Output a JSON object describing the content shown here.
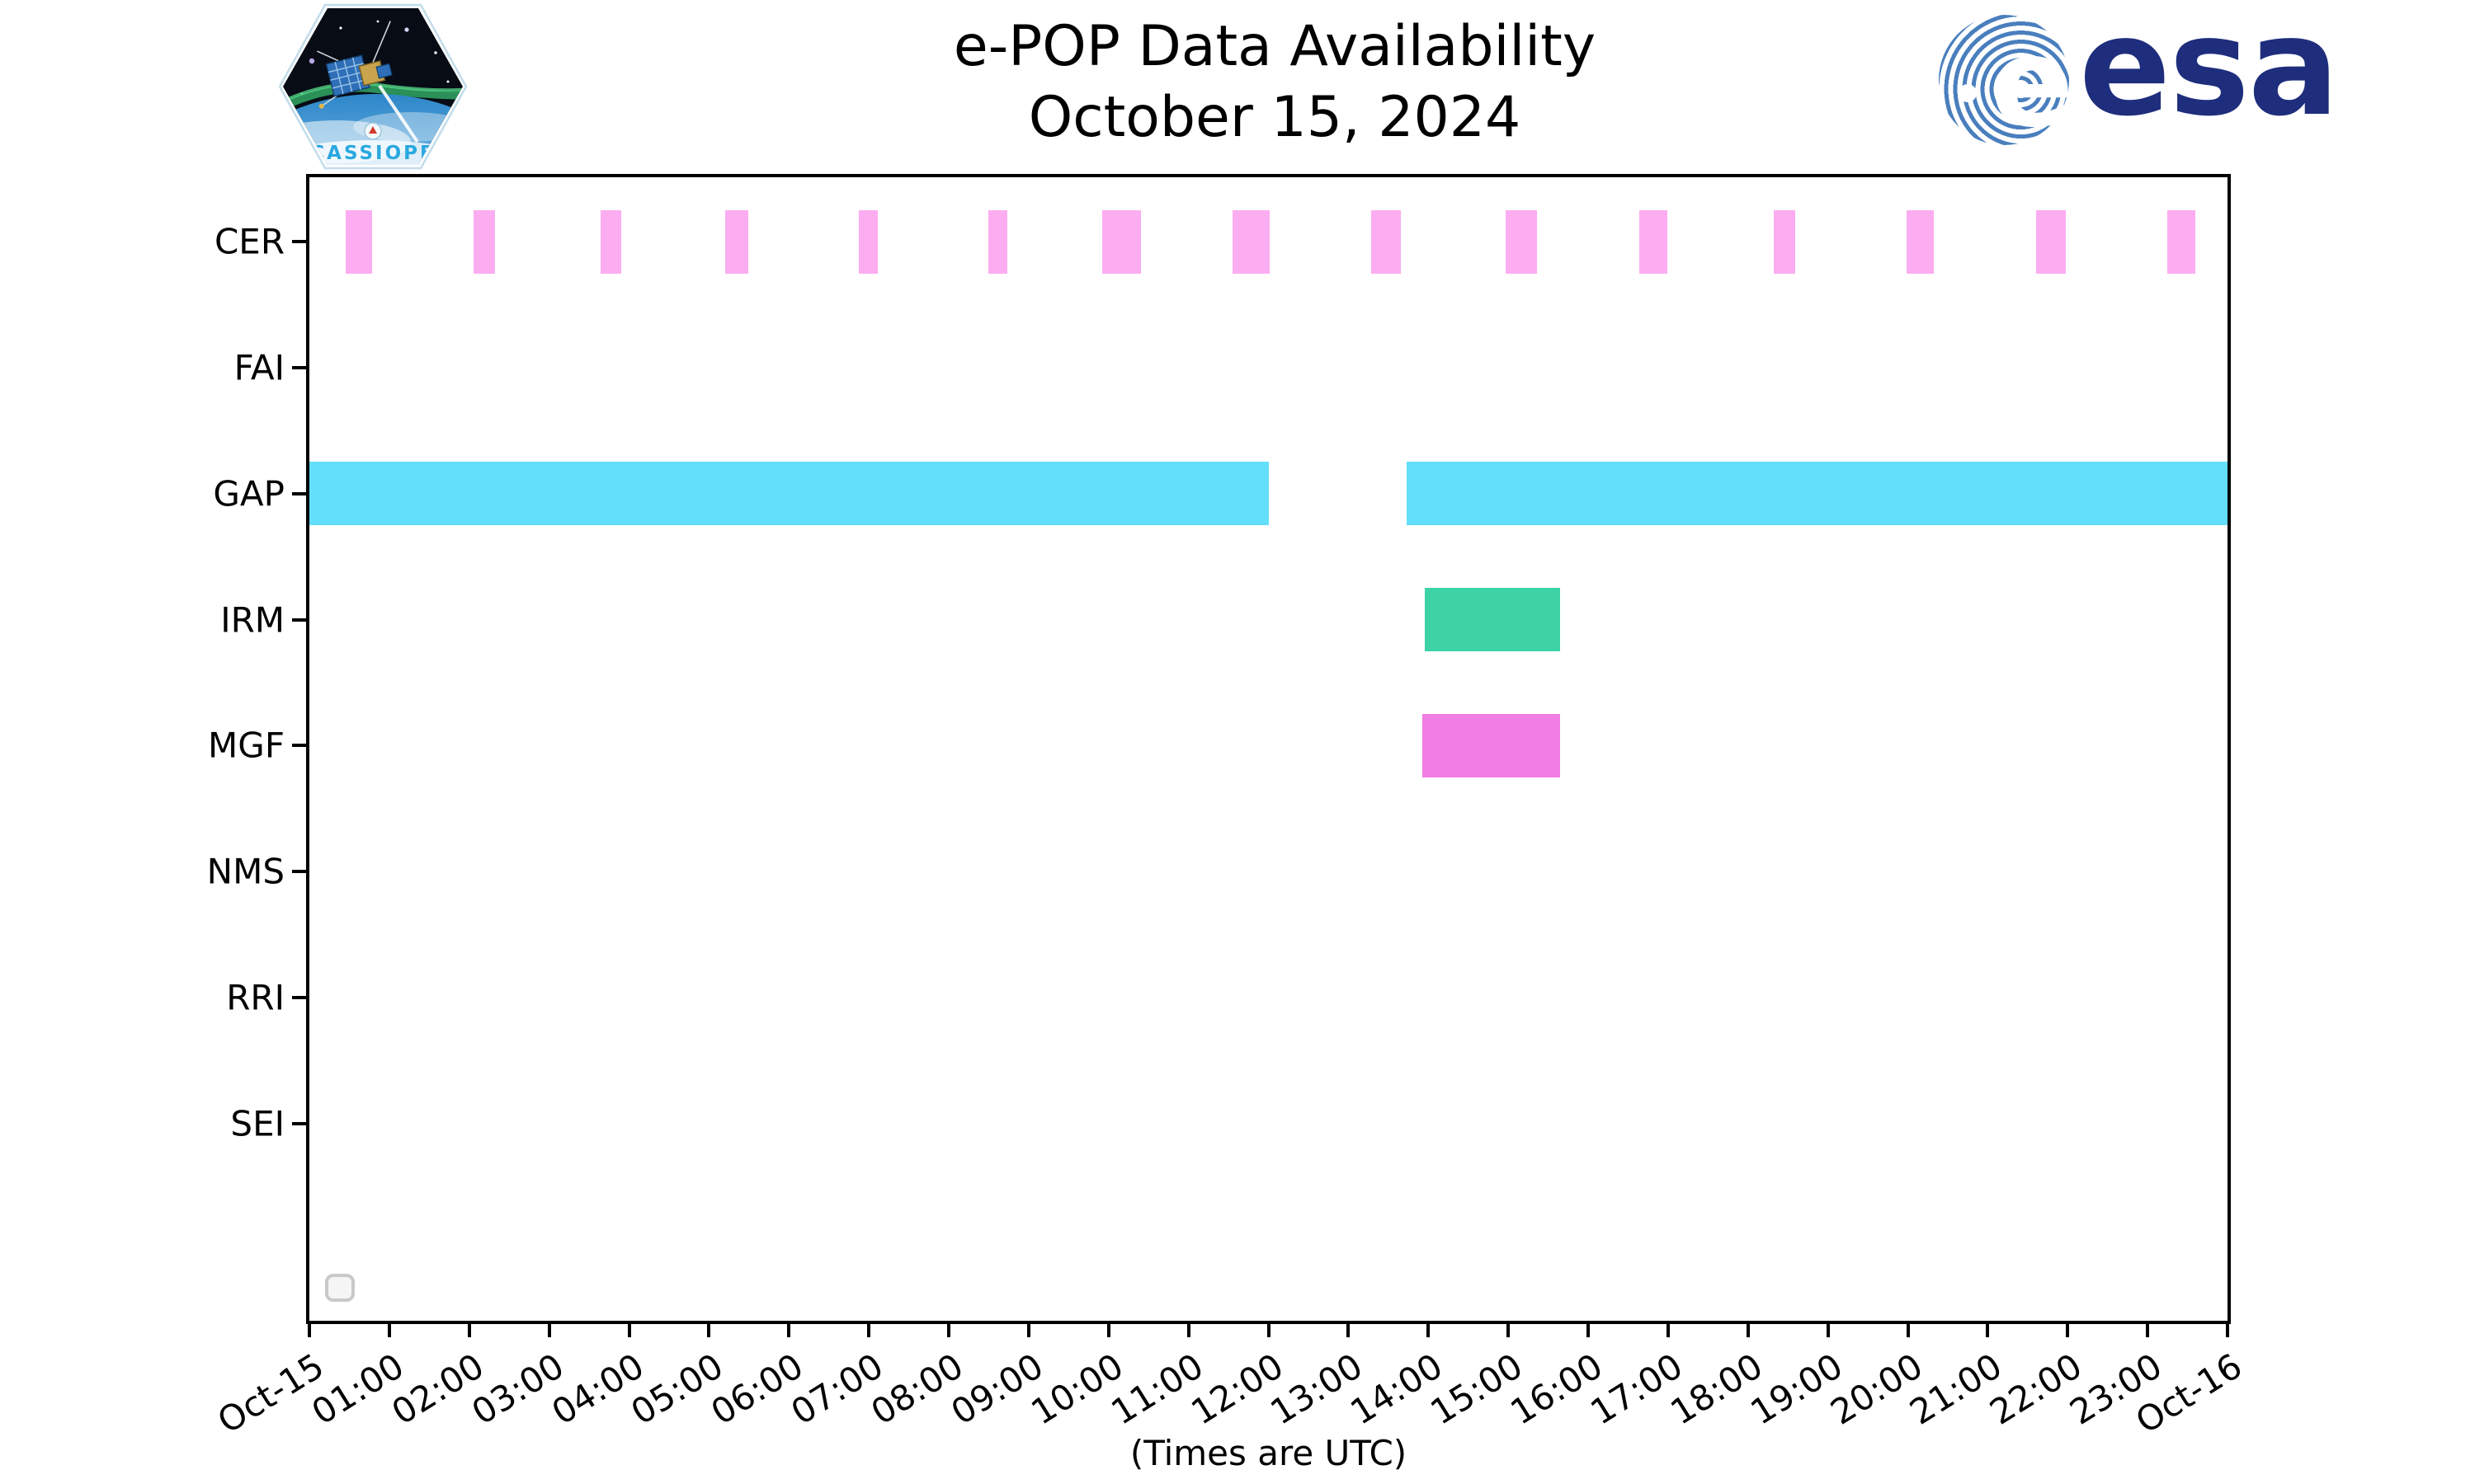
{
  "header": {
    "title_line1": "e-POP Data Availability",
    "title_line2": "October 15, 2024",
    "cassiope_patch_text": "CASSIOPE",
    "esa_logo_text": "esa"
  },
  "axis_note": "(Times are UTC)",
  "colors": {
    "cer_bar": "#fcadf1",
    "gap_bar": "#63defb",
    "irm_bar": "#3dd3a5",
    "mgf_bar": "#f17ee2",
    "axis": "#000000",
    "esa_stripe_blue": "#4a7fbe",
    "esa_text_navy": "#1e2e7d",
    "cassiope_text_blue": "#29a8e0"
  },
  "chart_data": {
    "type": "bar",
    "subtype": "availability-interval-timeline",
    "title": "e-POP Data Availability",
    "subtitle": "October 15, 2024",
    "xlabel": "(Times are UTC)",
    "x_unit": "hours UTC on 2024-10-15",
    "xlim": [
      0,
      24
    ],
    "grid": false,
    "legend_position": "lower-left-empty-box",
    "x_ticks": [
      "Oct-15",
      "01:00",
      "02:00",
      "03:00",
      "04:00",
      "05:00",
      "06:00",
      "07:00",
      "08:00",
      "09:00",
      "10:00",
      "11:00",
      "12:00",
      "13:00",
      "14:00",
      "15:00",
      "16:00",
      "17:00",
      "18:00",
      "19:00",
      "20:00",
      "21:00",
      "22:00",
      "23:00",
      "Oct-16"
    ],
    "y_categories": [
      "CER",
      "FAI",
      "GAP",
      "IRM",
      "MGF",
      "NMS",
      "RRI",
      "SEI"
    ],
    "series": [
      {
        "name": "CER",
        "color": "#fcadf1",
        "intervals": [
          [
            0.45,
            0.78
          ],
          [
            2.05,
            2.32
          ],
          [
            3.64,
            3.9
          ],
          [
            5.2,
            5.49
          ],
          [
            6.87,
            7.11
          ],
          [
            8.5,
            8.73
          ],
          [
            9.92,
            10.4
          ],
          [
            11.55,
            12.02
          ],
          [
            13.28,
            13.66
          ],
          [
            14.97,
            15.36
          ],
          [
            16.64,
            16.99
          ],
          [
            18.32,
            18.59
          ],
          [
            19.98,
            20.32
          ],
          [
            21.61,
            21.98
          ],
          [
            23.25,
            23.6
          ]
        ]
      },
      {
        "name": "FAI",
        "color": null,
        "intervals": []
      },
      {
        "name": "GAP",
        "color": "#63defb",
        "intervals": [
          [
            0.0,
            12.0
          ],
          [
            13.73,
            24.0
          ]
        ]
      },
      {
        "name": "IRM",
        "color": "#3dd3a5",
        "intervals": [
          [
            13.96,
            15.65
          ]
        ]
      },
      {
        "name": "MGF",
        "color": "#f17ee2",
        "intervals": [
          [
            13.92,
            15.65
          ]
        ]
      },
      {
        "name": "NMS",
        "color": null,
        "intervals": []
      },
      {
        "name": "RRI",
        "color": null,
        "intervals": []
      },
      {
        "name": "SEI",
        "color": null,
        "intervals": []
      }
    ]
  }
}
